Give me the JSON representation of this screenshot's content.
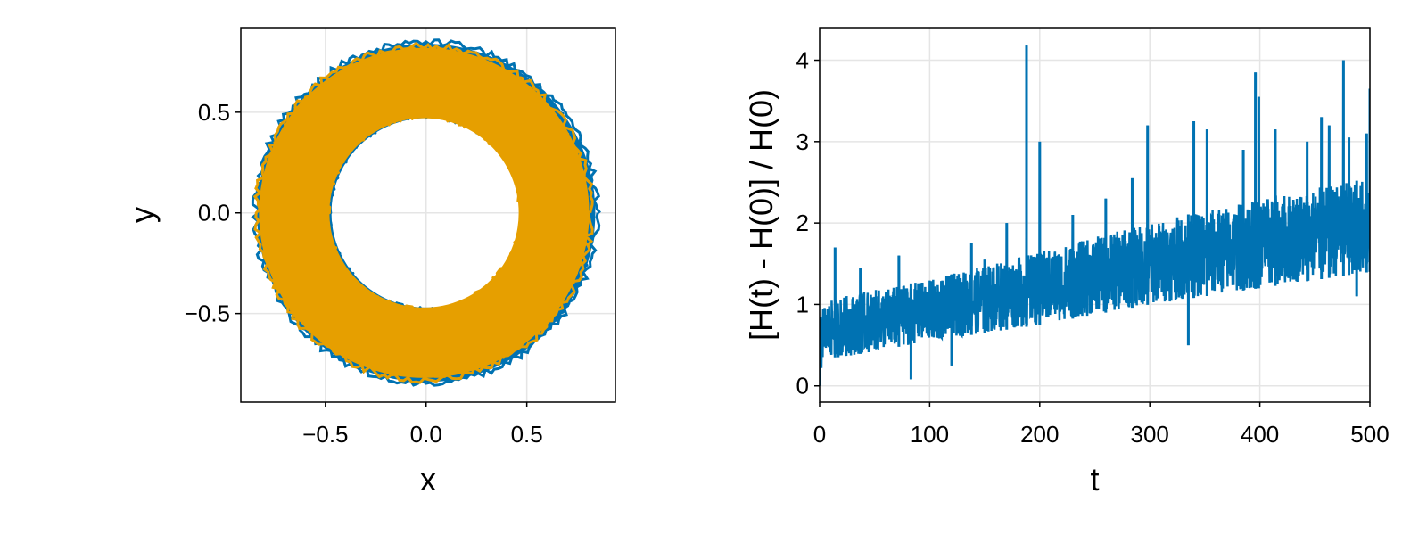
{
  "colors": {
    "blue": "#0072b2",
    "orange": "#e69f00",
    "grid": "#e5e5e5",
    "frame": "#000000"
  },
  "chart_data": [
    {
      "type": "line",
      "xlabel": "x",
      "ylabel": "y",
      "xlim": [
        -0.92,
        0.94
      ],
      "ylim": [
        -0.94,
        0.92
      ],
      "xticks": [
        -0.5,
        0.0,
        0.5
      ],
      "yticks": [
        -0.5,
        0.0,
        0.5
      ],
      "xtick_labels": [
        "−0.5",
        "0.0",
        "0.5"
      ],
      "ytick_labels": [
        "−0.5",
        "0.0",
        "0.5"
      ],
      "grid": true,
      "series": [
        {
          "color": "#0072b2",
          "inner_radius": 0.47,
          "outer_radius": 0.84,
          "center": [
            0.0,
            0.0
          ]
        },
        {
          "color": "#e69f00",
          "inner_radius": 0.47,
          "outer_radius": 0.82,
          "center": [
            -0.01,
            0.0
          ]
        }
      ]
    },
    {
      "type": "line",
      "xlabel": "t",
      "ylabel": "[H(t) - H(0)] / H(0)",
      "xlim": [
        0,
        500
      ],
      "ylim": [
        -0.2,
        4.4
      ],
      "xticks": [
        0,
        100,
        200,
        300,
        400,
        500
      ],
      "yticks": [
        0,
        1,
        2,
        3,
        4
      ],
      "xtick_labels": [
        "0",
        "100",
        "200",
        "300",
        "400",
        "500"
      ],
      "ytick_labels": [
        "0",
        "1",
        "2",
        "3",
        "4"
      ],
      "grid": true,
      "series": [
        {
          "color": "#0072b2",
          "trend_t": [
            0,
            3,
            20,
            100,
            200,
            300,
            400,
            500
          ],
          "trend_low": [
            0.0,
            0.35,
            0.35,
            0.55,
            0.75,
            1.0,
            1.2,
            1.4
          ],
          "trend_high": [
            0.8,
            1.0,
            1.1,
            1.3,
            1.65,
            2.0,
            2.3,
            2.55
          ],
          "spikes": [
            [
              14,
              1.7
            ],
            [
              37,
              1.45
            ],
            [
              72,
              1.6
            ],
            [
              138,
              1.75
            ],
            [
              150,
              1.55
            ],
            [
              170,
              2.0
            ],
            [
              188,
              4.18
            ],
            [
              200,
              3.0
            ],
            [
              230,
              2.1
            ],
            [
              260,
              2.3
            ],
            [
              284,
              2.55
            ],
            [
              298,
              3.2
            ],
            [
              340,
              3.25
            ],
            [
              352,
              3.15
            ],
            [
              385,
              2.9
            ],
            [
              396,
              3.85
            ],
            [
              399,
              3.55
            ],
            [
              414,
              3.15
            ],
            [
              443,
              3.0
            ],
            [
              456,
              3.3
            ],
            [
              463,
              3.2
            ],
            [
              476,
              4.0
            ],
            [
              481,
              3.05
            ],
            [
              497,
              3.1
            ],
            [
              500,
              3.65
            ]
          ],
          "dips": [
            [
              83,
              0.08
            ],
            [
              120,
              0.25
            ],
            [
              335,
              0.5
            ],
            [
              488,
              1.1
            ]
          ]
        }
      ]
    }
  ]
}
